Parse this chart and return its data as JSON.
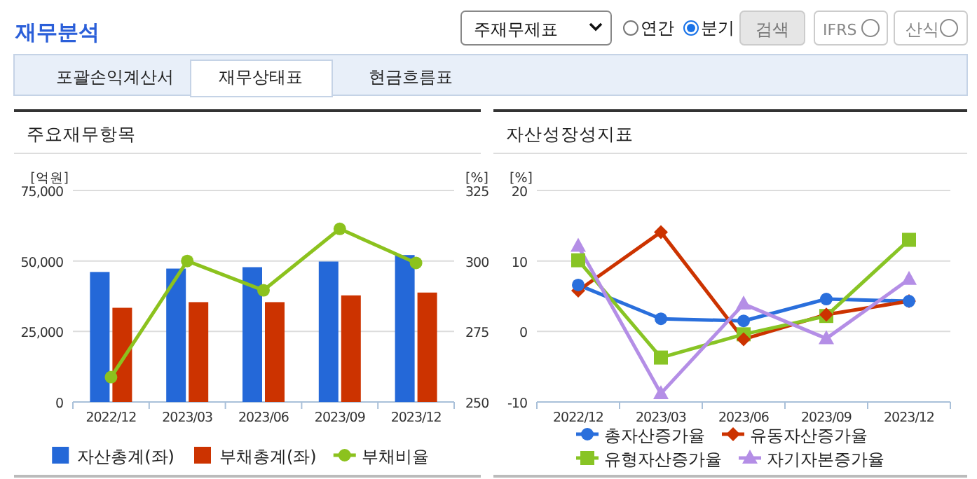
{
  "chart_data": [
    {
      "type": "other",
      "annotations": [
        "재무분석",
        "주재무제표",
        "연간",
        "분기",
        "검색",
        "IFRS",
        "산식",
        "포괄손익계산서",
        "재무상태표",
        "현금흐름표"
      ]
    },
    {
      "type": "bar",
      "title": "주요재무항목",
      "ylabel": "[억원]",
      "y2label": "[%]",
      "categories": [
        "2022/12",
        "2023/03",
        "2023/06",
        "2023/09",
        "2023/12"
      ],
      "ylim": [
        0,
        75000
      ],
      "yticks": [
        {
          "value": 0,
          "label": "0"
        },
        {
          "value": 25000,
          "label": "25,000"
        },
        {
          "value": 50000,
          "label": "50,000"
        },
        {
          "value": 75000,
          "label": "75,000"
        }
      ],
      "y2lim": [
        250,
        325
      ],
      "y2ticks": [
        250,
        275,
        300,
        325
      ],
      "grid": "y",
      "legend": "bottom",
      "series": [
        {
          "name": "자산총계(좌)",
          "color": "#2468d8",
          "values": [
            46100,
            47300,
            47800,
            49800,
            52100
          ]
        },
        {
          "name": "부채총계(좌)",
          "color": "#cc3300",
          "values": [
            33400,
            35400,
            35400,
            37800,
            38800
          ]
        },
        {
          "name": "부채비율",
          "type": "line",
          "axis": "y2",
          "marker": "circle",
          "color": "#8cc21e",
          "values": [
            258.8,
            300,
            289.6,
            311.4,
            299.3
          ]
        }
      ]
    },
    {
      "type": "line",
      "title": "자산성장성지표",
      "ylabel": "[%]",
      "categories": [
        "2022/12",
        "2023/03",
        "2023/06",
        "2023/09",
        "2023/12"
      ],
      "ylim": [
        -10,
        20
      ],
      "yticks": [
        -10,
        0,
        10,
        20
      ],
      "grid": "y",
      "legend": "bottom",
      "series": [
        {
          "name": "총자산증가율",
          "marker": "circle",
          "color": "#2a6fdc",
          "values": [
            6.6,
            1.8,
            1.5,
            4.6,
            4.3
          ]
        },
        {
          "name": "유동자산증가율",
          "marker": "diamond",
          "color": "#cc3300",
          "values": [
            5.8,
            14.1,
            -1.1,
            2.4,
            4.3
          ]
        },
        {
          "name": "유형자산증가율",
          "marker": "square",
          "color": "#88c425",
          "values": [
            10.1,
            -3.7,
            -0.4,
            2.2,
            13.0
          ]
        },
        {
          "name": "자기자본증가율",
          "marker": "triangle",
          "color": "#b48ee6",
          "values": [
            12.1,
            -8.8,
            3.9,
            -1.0,
            7.4
          ]
        }
      ]
    }
  ]
}
